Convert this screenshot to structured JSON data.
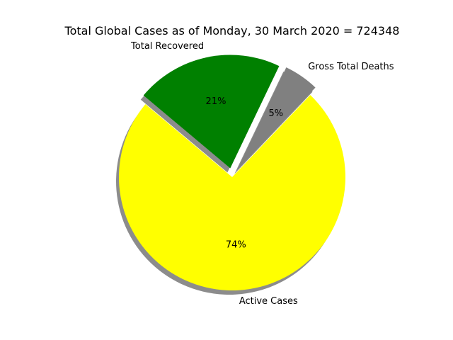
{
  "chart_data": {
    "type": "pie",
    "title": "Total Global Cases as of Monday, 30 March 2020 = 724348",
    "slices": [
      {
        "label": "Active Cases",
        "percent": 74,
        "percent_label": "74%",
        "color": "#ffff00",
        "exploded": false
      },
      {
        "label": "Gross Total Deaths",
        "percent": 5,
        "percent_label": "5%",
        "color": "#808080",
        "exploded": true
      },
      {
        "label": "Total Recovered",
        "percent": 21,
        "percent_label": "21%",
        "color": "#008000",
        "exploded": true
      }
    ],
    "shadow": true,
    "legend": false
  }
}
